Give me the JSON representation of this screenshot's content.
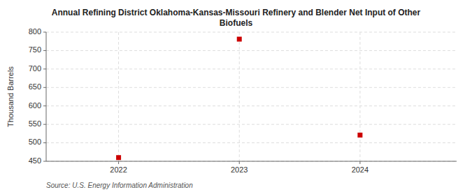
{
  "chart_data": {
    "type": "scatter",
    "title": "Annual Refining District Oklahoma-Kansas-Missouri Refinery and Blender Net Input of Other\nBiofuels",
    "ylabel": "Thousand Barrels",
    "source": "Source: U.S. Energy Information Administration",
    "x": [
      2022,
      2023,
      2024
    ],
    "values": [
      460,
      781,
      521
    ],
    "color": "#cc0000",
    "marker": "square",
    "xlim": [
      2021.4,
      2024.8
    ],
    "xticks": [
      2022,
      2023,
      2024
    ],
    "ylim": [
      450,
      800
    ],
    "yticks": [
      450,
      500,
      550,
      600,
      650,
      700,
      750,
      800
    ],
    "grid": true
  }
}
